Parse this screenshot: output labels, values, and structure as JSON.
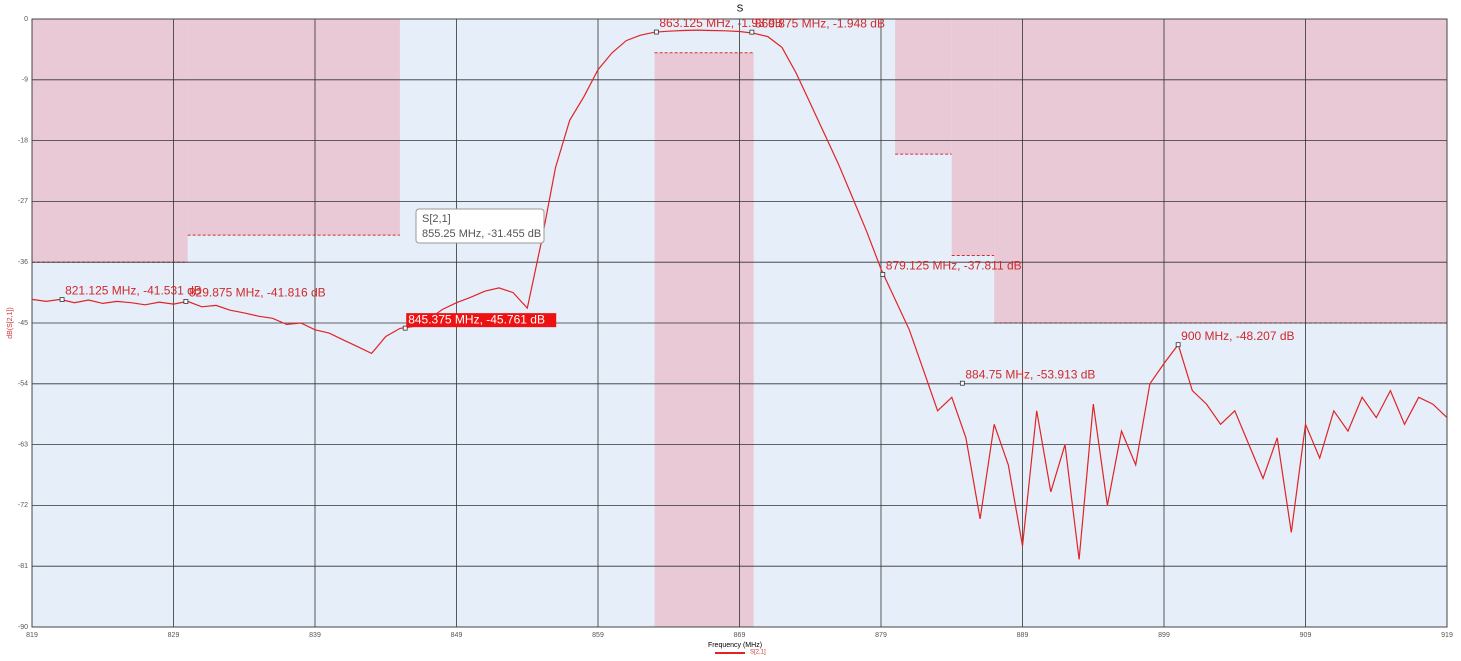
{
  "chart_data": {
    "type": "line",
    "title": "S",
    "xlabel": "Frequency (MHz)",
    "ylabel": "dB(S[2,1])",
    "xlim": [
      819,
      919
    ],
    "xticks": [
      819,
      829,
      839,
      849,
      859,
      869,
      879,
      889,
      899,
      909,
      919
    ],
    "ylim": [
      -90,
      0
    ],
    "yticks": [
      0,
      -9,
      -18,
      -27,
      -36,
      -45,
      -54,
      -63,
      -72,
      -81,
      -90
    ],
    "grid": true,
    "plot_background": "#e6eefa",
    "mask_color": "#e9c9d5",
    "masks": [
      {
        "x": [
          819,
          830
        ],
        "y": [
          0,
          -36
        ]
      },
      {
        "x": [
          830,
          845
        ],
        "y": [
          0,
          -32
        ]
      },
      {
        "x": [
          863,
          870
        ],
        "y": [
          -5,
          -90
        ]
      },
      {
        "x": [
          880,
          884
        ],
        "y": [
          0,
          -20
        ]
      },
      {
        "x": [
          884,
          887
        ],
        "y": [
          0,
          -35
        ]
      },
      {
        "x": [
          887,
          919
        ],
        "y": [
          0,
          -45
        ]
      }
    ],
    "x": [
      819,
      820,
      821,
      822,
      823,
      824,
      825,
      826,
      827,
      828,
      829,
      830,
      831,
      832,
      833,
      834,
      835,
      836,
      837,
      838,
      839,
      840,
      841,
      842,
      843,
      844,
      845,
      846,
      847,
      848,
      849,
      850,
      851,
      852,
      853,
      854,
      855,
      856,
      857,
      858,
      859,
      860,
      861,
      862,
      863,
      864,
      865,
      866,
      867,
      868,
      869,
      870,
      871,
      872,
      873,
      874,
      875,
      876,
      877,
      878,
      879,
      880,
      881,
      882,
      883,
      884,
      885,
      886,
      887,
      888,
      889,
      890,
      891,
      892,
      893,
      894,
      895,
      896,
      897,
      898,
      899,
      900,
      901,
      902,
      903,
      904,
      905,
      906,
      907,
      908,
      909,
      910,
      911,
      912,
      913,
      914,
      915,
      916,
      917,
      918,
      919
    ],
    "series": [
      {
        "name": "S[2,1]",
        "color": "#e02424",
        "values": [
          -41.5,
          -41.8,
          -41.5,
          -42,
          -41.6,
          -42.1,
          -41.8,
          -42,
          -42.3,
          -41.9,
          -42.2,
          -41.8,
          -42.6,
          -42.4,
          -43.1,
          -43.5,
          -44,
          -44.3,
          -45.2,
          -45,
          -46,
          -46.5,
          -47.5,
          -48.5,
          -49.5,
          -47,
          -45.8,
          -45.5,
          -44.5,
          -43,
          -42,
          -41.2,
          -40.3,
          -39.8,
          -40.5,
          -42.8,
          -33,
          -22,
          -15,
          -11.5,
          -7.5,
          -5,
          -3.2,
          -2.4,
          -1.95,
          -1.8,
          -1.7,
          -1.65,
          -1.7,
          -1.75,
          -1.85,
          -2.1,
          -2.6,
          -4.2,
          -8,
          -12.5,
          -17,
          -21.5,
          -26.5,
          -31.5,
          -37,
          -41.5,
          -46,
          -52,
          -58,
          -56,
          -62,
          -74,
          -60,
          -66,
          -78,
          -58,
          -70,
          -63,
          -80,
          -57,
          -72,
          -61,
          -66,
          -54,
          -51,
          -48.2,
          -55,
          -57,
          -60,
          -58,
          -63,
          -68,
          -62,
          -76,
          -60,
          -65,
          -58,
          -61,
          -56,
          -59,
          -55,
          -60,
          -56,
          -57,
          -59
        ]
      }
    ],
    "markers": [
      {
        "x": 821.125,
        "y": -41.531,
        "label": "821.125 MHz, -41.531 dB"
      },
      {
        "x": 829.875,
        "y": -41.816,
        "label": "829.875 MHz, -41.816 dB"
      },
      {
        "x": 845.375,
        "y": -45.761,
        "label": "845.375 MHz, -45.761 dB",
        "highlighted": true
      },
      {
        "x": 863.125,
        "y": -1.93,
        "label": "863.125 MHz, -1.93 dB"
      },
      {
        "x": 869.875,
        "y": -1.948,
        "label": "869.875 MHz, -1.948 dB"
      },
      {
        "x": 879.125,
        "y": -37.811,
        "label": "879.125 MHz, -37.811 dB"
      },
      {
        "x": 884.75,
        "y": -53.913,
        "label": "884.75 MHz, -53.913 dB"
      },
      {
        "x": 900,
        "y": -48.207,
        "label": "900 MHz, -48.207 dB"
      }
    ],
    "tooltip": {
      "title": "S[2,1]",
      "text": "855.25 MHz, -31.455 dB"
    }
  }
}
